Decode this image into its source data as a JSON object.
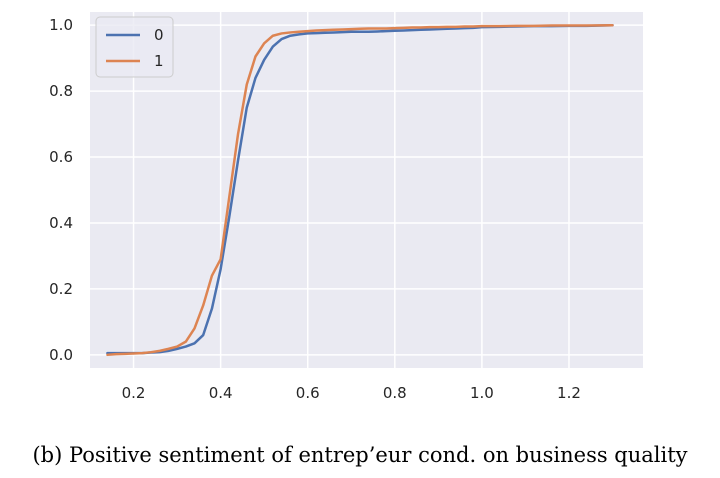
{
  "caption": "(b) Positive sentiment of entrep’eur cond. on business quality",
  "chart_data": {
    "type": "line",
    "title": "",
    "xlabel": "",
    "ylabel": "",
    "xlim": [
      0.1,
      1.37
    ],
    "ylim": [
      -0.04,
      1.04
    ],
    "xticks": [
      0.2,
      0.4,
      0.6,
      0.8,
      1.0,
      1.2
    ],
    "xtick_labels": [
      "0.2",
      "0.4",
      "0.6",
      "0.8",
      "1.0",
      "1.2"
    ],
    "yticks": [
      0.0,
      0.2,
      0.4,
      0.6,
      0.8,
      1.0
    ],
    "ytick_labels": [
      "0.0",
      "0.2",
      "0.4",
      "0.6",
      "0.8",
      "1.0"
    ],
    "grid": true,
    "legend_position": "top-left",
    "background_color": "#eaeaf2",
    "series": [
      {
        "name": "0",
        "color": "#4c72b0",
        "x": [
          0.14,
          0.16,
          0.18,
          0.2,
          0.22,
          0.24,
          0.26,
          0.28,
          0.3,
          0.32,
          0.34,
          0.36,
          0.38,
          0.4,
          0.42,
          0.44,
          0.46,
          0.48,
          0.5,
          0.52,
          0.54,
          0.56,
          0.58,
          0.6,
          0.62,
          0.64,
          0.66,
          0.68,
          0.7,
          0.72,
          0.74,
          0.76,
          0.78,
          0.8,
          0.82,
          0.84,
          0.86,
          0.88,
          0.9,
          0.92,
          0.94,
          0.96,
          0.98,
          1.0,
          1.04,
          1.08,
          1.12,
          1.16,
          1.2,
          1.24,
          1.3
        ],
        "values": [
          0.005,
          0.005,
          0.005,
          0.005,
          0.005,
          0.007,
          0.008,
          0.012,
          0.018,
          0.025,
          0.035,
          0.06,
          0.14,
          0.26,
          0.42,
          0.59,
          0.75,
          0.84,
          0.895,
          0.935,
          0.958,
          0.968,
          0.972,
          0.975,
          0.976,
          0.977,
          0.978,
          0.979,
          0.98,
          0.98,
          0.98,
          0.981,
          0.982,
          0.983,
          0.984,
          0.985,
          0.986,
          0.987,
          0.988,
          0.989,
          0.99,
          0.991,
          0.992,
          0.994,
          0.995,
          0.996,
          0.997,
          0.997,
          0.998,
          0.998,
          1.0
        ]
      },
      {
        "name": "1",
        "color": "#dd8452",
        "x": [
          0.14,
          0.16,
          0.18,
          0.2,
          0.22,
          0.24,
          0.26,
          0.28,
          0.3,
          0.32,
          0.34,
          0.36,
          0.38,
          0.4,
          0.42,
          0.44,
          0.46,
          0.48,
          0.5,
          0.52,
          0.54,
          0.56,
          0.58,
          0.6,
          0.62,
          0.64,
          0.66,
          0.68,
          0.7,
          0.72,
          0.74,
          0.76,
          0.78,
          0.8,
          0.82,
          0.84,
          0.86,
          0.88,
          0.9,
          0.92,
          0.94,
          0.96,
          0.98,
          1.0,
          1.04,
          1.08,
          1.12,
          1.16,
          1.2,
          1.24,
          1.3
        ],
        "values": [
          0.0,
          0.002,
          0.003,
          0.004,
          0.005,
          0.008,
          0.012,
          0.018,
          0.025,
          0.04,
          0.08,
          0.15,
          0.24,
          0.29,
          0.48,
          0.67,
          0.82,
          0.905,
          0.945,
          0.968,
          0.975,
          0.978,
          0.98,
          0.982,
          0.984,
          0.985,
          0.986,
          0.987,
          0.988,
          0.989,
          0.99,
          0.99,
          0.99,
          0.991,
          0.992,
          0.993,
          0.993,
          0.994,
          0.994,
          0.995,
          0.995,
          0.996,
          0.996,
          0.997,
          0.997,
          0.998,
          0.998,
          0.999,
          0.999,
          0.999,
          1.0
        ]
      }
    ]
  }
}
